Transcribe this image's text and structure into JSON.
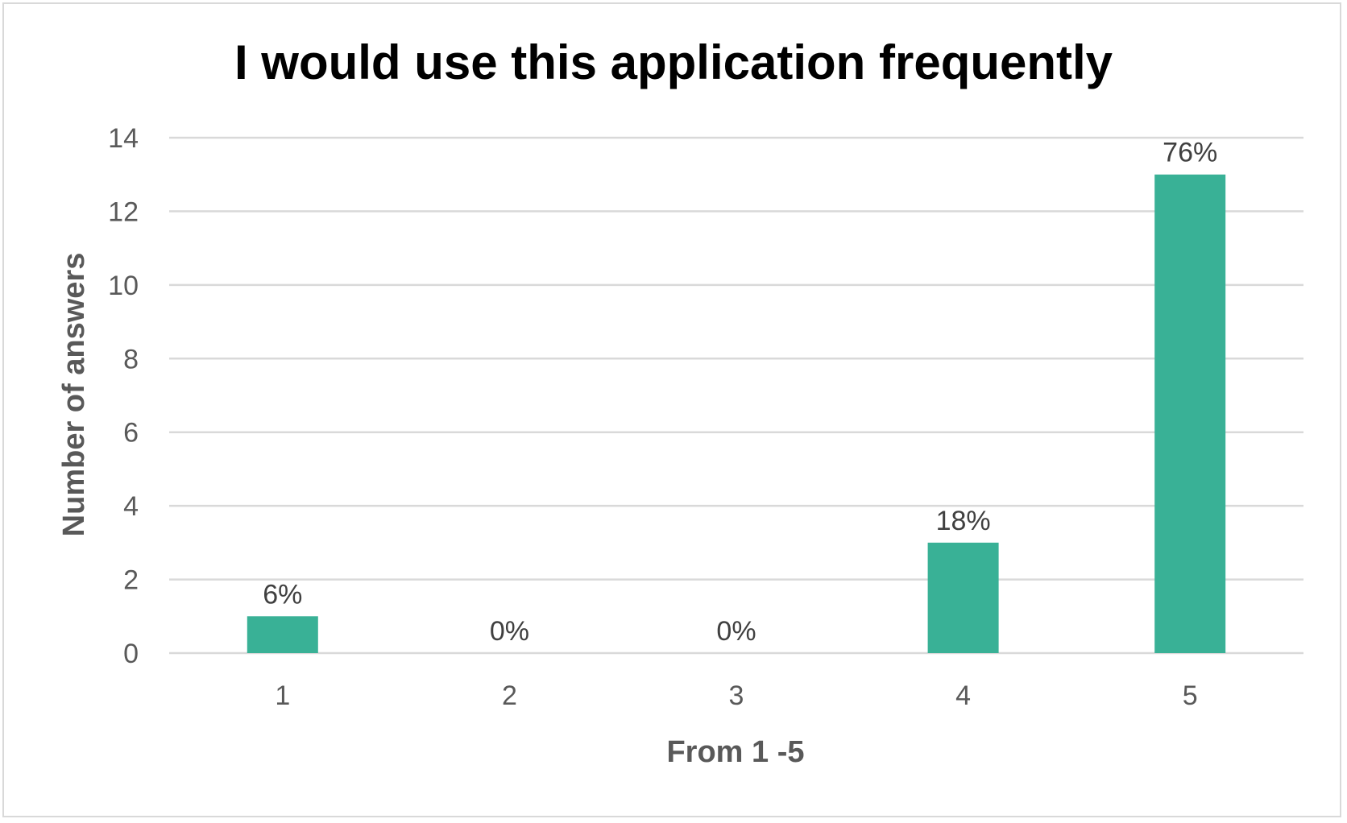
{
  "chart_data": {
    "type": "bar",
    "title": "I would use this application frequently",
    "xlabel": "From 1 -5",
    "ylabel": "Number of answers",
    "categories": [
      "1",
      "2",
      "3",
      "4",
      "5"
    ],
    "values": [
      1,
      0,
      0,
      3,
      13
    ],
    "data_labels": [
      "6%",
      "0%",
      "0%",
      "18%",
      "76%"
    ],
    "ylim": [
      0,
      14
    ],
    "yticks": [
      "0",
      "2",
      "4",
      "6",
      "8",
      "10",
      "12",
      "14"
    ],
    "grid": true,
    "bar_color": "#39b196",
    "grid_color": "#d9d9d9",
    "legend": "none"
  }
}
